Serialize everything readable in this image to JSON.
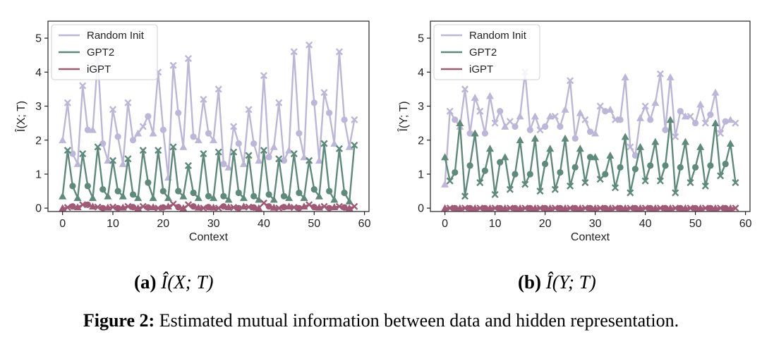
{
  "figure": {
    "subfig_a": {
      "label": "(a)",
      "expr": "Î(X; T)"
    },
    "subfig_b": {
      "label": "(b)",
      "expr": "Î(Y; T)"
    },
    "caption": {
      "label": "Figure 2:",
      "text": "Estimated mutual information between data and hidden representation."
    }
  },
  "chart_data": [
    {
      "type": "line",
      "xlabel": "Context",
      "ylabel": "Î(X; T)",
      "xlim": [
        -2.9,
        60.9
      ],
      "ylim": [
        -0.1,
        5.5
      ],
      "xticks": [
        0,
        10,
        20,
        30,
        40,
        50,
        60
      ],
      "yticks": [
        0,
        1,
        2,
        3,
        4,
        5
      ],
      "grid": false,
      "legend": "top-left",
      "x": [
        0,
        1,
        2,
        3,
        4,
        5,
        6,
        7,
        8,
        9,
        10,
        11,
        12,
        13,
        14,
        15,
        16,
        17,
        18,
        19,
        20,
        21,
        22,
        23,
        24,
        25,
        26,
        27,
        28,
        29,
        30,
        31,
        32,
        33,
        34,
        35,
        36,
        37,
        38,
        39,
        40,
        41,
        42,
        43,
        44,
        45,
        46,
        47,
        48,
        49,
        50,
        51,
        52,
        53,
        54,
        55,
        56,
        57,
        58
      ],
      "series": [
        {
          "name": "Random Init",
          "color": "#bcb6d8",
          "values": [
            2.0,
            3.1,
            1.6,
            1.3,
            3.6,
            2.3,
            2.3,
            4.4,
            1.9,
            1.4,
            2.9,
            2.1,
            1.3,
            3.1,
            2.0,
            2.2,
            2.4,
            2.7,
            2.2,
            4.0,
            2.3,
            0.9,
            4.2,
            2.8,
            1.8,
            4.4,
            2.1,
            2.0,
            3.2,
            2.2,
            2.0,
            3.5,
            1.3,
            1.2,
            2.4,
            1.9,
            1.3,
            2.9,
            1.9,
            1.4,
            3.9,
            1.5,
            1.8,
            3.1,
            1.4,
            1.7,
            4.6,
            2.2,
            1.5,
            4.8,
            3.1,
            1.4,
            3.4,
            2.8,
            1.9,
            4.6,
            2.6,
            1.8,
            2.6
          ]
        },
        {
          "name": "GPT2",
          "color": "#5d8a7a",
          "values": [
            0.35,
            1.7,
            0.65,
            0.3,
            1.6,
            0.65,
            0.3,
            1.8,
            0.55,
            0.35,
            1.4,
            0.5,
            0.35,
            1.45,
            0.4,
            0.3,
            1.7,
            0.75,
            0.3,
            1.7,
            0.5,
            0.3,
            1.8,
            0.5,
            0.35,
            1.25,
            0.45,
            0.3,
            1.6,
            0.35,
            0.3,
            1.65,
            0.35,
            0.25,
            1.65,
            0.45,
            0.3,
            1.55,
            0.35,
            0.25,
            1.7,
            0.4,
            0.25,
            1.45,
            0.35,
            0.3,
            1.6,
            0.45,
            0.3,
            1.4,
            0.55,
            0.35,
            1.9,
            0.5,
            0.25,
            1.75,
            0.45,
            0.2,
            1.85
          ]
        },
        {
          "name": "iGPT",
          "color": "#a05a75",
          "values": [
            0.0,
            0.02,
            0.05,
            0.03,
            0.1,
            0.1,
            0.05,
            0.03,
            0.0,
            0.02,
            0.03,
            0.0,
            0.02,
            0.05,
            0.03,
            0.0,
            0.05,
            0.02,
            0.03,
            0.0,
            0.02,
            0.05,
            0.12,
            0.03,
            0.0,
            0.1,
            0.05,
            0.02,
            0.0,
            0.03,
            0.02,
            0.0,
            0.05,
            0.03,
            0.02,
            0.0,
            0.05,
            0.03,
            0.02,
            0.0,
            0.15,
            0.05,
            0.02,
            0.0,
            0.03,
            0.05,
            0.02,
            0.0,
            0.05,
            0.1,
            0.03,
            0.02,
            0.05,
            0.0,
            0.03,
            0.05,
            0.02,
            0.0,
            0.05
          ]
        }
      ]
    },
    {
      "type": "line",
      "xlabel": "Context",
      "ylabel": "Î(Y; T)",
      "xlim": [
        -2.9,
        60.9
      ],
      "ylim": [
        -0.1,
        5.5
      ],
      "xticks": [
        0,
        10,
        20,
        30,
        40,
        50,
        60
      ],
      "yticks": [
        0,
        1,
        2,
        3,
        4,
        5
      ],
      "grid": false,
      "legend": "top-left",
      "x": [
        0,
        1,
        2,
        3,
        4,
        5,
        6,
        7,
        8,
        9,
        10,
        11,
        12,
        13,
        14,
        15,
        16,
        17,
        18,
        19,
        20,
        21,
        22,
        23,
        24,
        25,
        26,
        27,
        28,
        29,
        30,
        31,
        32,
        33,
        34,
        35,
        36,
        37,
        38,
        39,
        40,
        41,
        42,
        43,
        44,
        45,
        46,
        47,
        48,
        49,
        50,
        51,
        52,
        53,
        54,
        55,
        56,
        57,
        58
      ],
      "series": [
        {
          "name": "Random Init",
          "color": "#bcb6d8",
          "values": [
            0.7,
            2.85,
            2.6,
            2.4,
            3.5,
            2.2,
            3.25,
            2.85,
            2.2,
            3.3,
            2.5,
            2.85,
            2.4,
            2.55,
            2.4,
            2.7,
            4.0,
            2.3,
            2.7,
            2.3,
            2.4,
            2.7,
            2.7,
            2.4,
            2.9,
            3.75,
            2.05,
            2.8,
            2.6,
            2.25,
            2.2,
            3.0,
            2.85,
            2.9,
            2.6,
            2.6,
            3.85,
            1.8,
            1.55,
            2.65,
            3.0,
            2.6,
            3.1,
            3.95,
            2.3,
            3.85,
            2.1,
            2.85,
            2.7,
            2.7,
            2.5,
            3.05,
            2.5,
            2.75,
            3.4,
            2.2,
            2.55,
            2.6,
            2.5
          ]
        },
        {
          "name": "GPT2",
          "color": "#5d8a7a",
          "values": [
            1.5,
            0.8,
            1.05,
            2.5,
            0.35,
            1.25,
            2.2,
            0.75,
            1.1,
            1.75,
            0.4,
            1.35,
            1.5,
            0.55,
            1.0,
            2.0,
            0.7,
            1.0,
            2.05,
            0.5,
            1.3,
            1.75,
            0.55,
            1.05,
            2.05,
            0.65,
            1.2,
            1.75,
            0.75,
            1.5,
            1.5,
            0.85,
            1.0,
            1.55,
            0.6,
            1.2,
            2.1,
            0.45,
            1.15,
            1.8,
            0.8,
            1.25,
            1.95,
            0.8,
            1.25,
            2.6,
            0.45,
            1.2,
            1.95,
            0.75,
            1.2,
            1.8,
            0.65,
            1.25,
            2.5,
            0.95,
            1.3,
            1.9,
            0.75
          ]
        },
        {
          "name": "iGPT",
          "color": "#a05a75",
          "values": [
            0,
            0,
            0,
            0,
            0,
            0,
            0,
            0,
            0,
            0,
            0,
            0,
            0,
            0,
            0,
            0,
            0,
            0,
            0,
            0,
            0,
            0,
            0,
            0,
            0,
            0,
            0,
            0,
            0,
            0,
            0,
            0,
            0,
            0,
            0,
            0,
            0,
            0,
            0,
            0,
            0,
            0,
            0,
            0,
            0,
            0,
            0,
            0,
            0,
            0,
            0,
            0,
            0,
            0,
            0,
            0,
            0,
            0,
            0
          ]
        }
      ]
    }
  ]
}
